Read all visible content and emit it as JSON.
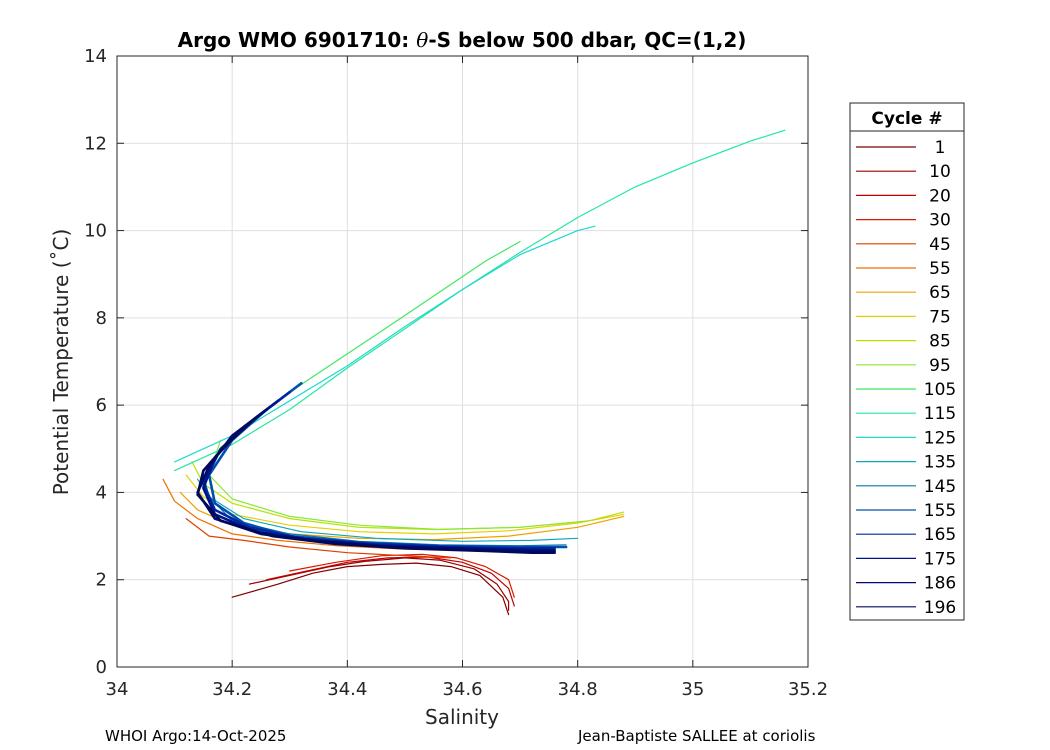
{
  "title": {
    "prefix": "Argo WMO 6901710: ",
    "symbol": "θ",
    "suffix": "-S below 500 dbar,  QC=(1,2)"
  },
  "footer": {
    "left": "WHOI Argo:14-Oct-2025",
    "right": "Jean-Baptiste SALLEE at coriolis"
  },
  "chart_data": {
    "type": "line",
    "xlabel": "Salinity",
    "ylabel": "Potential Temperature (˚C)",
    "xlim": [
      34,
      35.2
    ],
    "ylim": [
      0,
      14
    ],
    "xticks": [
      34,
      34.2,
      34.4,
      34.6,
      34.8,
      35,
      35.2
    ],
    "xtick_labels": [
      "34",
      "34.2",
      "34.4",
      "34.6",
      "34.8",
      "35",
      "35.2"
    ],
    "yticks": [
      0,
      2,
      4,
      6,
      8,
      10,
      12,
      14
    ],
    "ytick_labels": [
      "0",
      "2",
      "4",
      "6",
      "8",
      "10",
      "12",
      "14"
    ],
    "grid": true,
    "legend": {
      "title": "Cycle #",
      "placement": "outside-right",
      "entries": [
        "1",
        "10",
        "20",
        "30",
        "45",
        "55",
        "65",
        "75",
        "85",
        "95",
        "105",
        "115",
        "125",
        "135",
        "145",
        "155",
        "165",
        "175",
        "186",
        "196"
      ],
      "colors": [
        "#7f0000",
        "#990000",
        "#c00000",
        "#d81a00",
        "#e04000",
        "#ee7000",
        "#f0a000",
        "#e6d000",
        "#b8e000",
        "#88e830",
        "#40e860",
        "#20e8a0",
        "#20d8d0",
        "#10a8b8",
        "#0878a8",
        "#0050b0",
        "#0028a0",
        "#00148a",
        "#000a70",
        "#000a5a"
      ]
    },
    "series": [
      {
        "color": "#7f0000",
        "x": [
          34.2,
          34.28,
          34.34,
          34.4,
          34.46,
          34.52,
          34.58,
          34.63,
          34.67,
          34.68
        ],
        "y": [
          1.6,
          1.9,
          2.15,
          2.3,
          2.35,
          2.38,
          2.3,
          2.1,
          1.6,
          1.2
        ]
      },
      {
        "color": "#990000",
        "x": [
          34.23,
          34.3,
          34.37,
          34.43,
          34.5,
          34.56,
          34.62,
          34.66,
          34.68,
          34.68
        ],
        "y": [
          1.9,
          2.1,
          2.3,
          2.42,
          2.5,
          2.45,
          2.25,
          1.9,
          1.5,
          1.3
        ]
      },
      {
        "color": "#c00000",
        "x": [
          34.26,
          34.33,
          34.4,
          34.47,
          34.54,
          34.6,
          34.65,
          34.68,
          34.69
        ],
        "y": [
          2.0,
          2.2,
          2.4,
          2.5,
          2.52,
          2.4,
          2.15,
          1.8,
          1.4
        ]
      },
      {
        "color": "#d81a00",
        "x": [
          34.3,
          34.38,
          34.46,
          34.53,
          34.59,
          34.64,
          34.68,
          34.69
        ],
        "y": [
          2.2,
          2.4,
          2.55,
          2.58,
          2.5,
          2.3,
          2.0,
          1.6
        ]
      },
      {
        "color": "#e04000",
        "x": [
          34.12,
          34.16,
          34.22,
          34.3,
          34.4,
          34.5,
          34.58
        ],
        "y": [
          3.4,
          3.0,
          2.9,
          2.75,
          2.62,
          2.55,
          2.5
        ]
      },
      {
        "color": "#ee7000",
        "x": [
          34.08,
          34.1,
          34.14,
          34.2,
          34.28,
          34.38,
          34.5,
          34.62,
          34.72
        ],
        "y": [
          4.3,
          3.8,
          3.4,
          3.05,
          2.9,
          2.78,
          2.7,
          2.68,
          2.7
        ]
      },
      {
        "color": "#f0a000",
        "x": [
          34.11,
          34.14,
          34.2,
          34.3,
          34.42,
          34.55,
          34.68,
          34.8,
          34.88
        ],
        "y": [
          4.0,
          3.6,
          3.25,
          3.05,
          2.95,
          2.92,
          3.0,
          3.2,
          3.45
        ]
      },
      {
        "color": "#e6d000",
        "x": [
          34.12,
          34.15,
          34.2,
          34.3,
          34.42,
          34.55,
          34.68,
          34.8,
          34.88
        ],
        "y": [
          4.4,
          3.9,
          3.5,
          3.25,
          3.1,
          3.05,
          3.12,
          3.3,
          3.5
        ]
      },
      {
        "color": "#b8e000",
        "x": [
          34.13,
          34.15,
          34.2,
          34.3,
          34.42,
          34.55,
          34.7,
          34.82,
          34.88
        ],
        "y": [
          4.7,
          4.2,
          3.75,
          3.4,
          3.2,
          3.15,
          3.2,
          3.35,
          3.55
        ]
      },
      {
        "color": "#88e830",
        "x": [
          34.18,
          34.16,
          34.2,
          34.3,
          34.42,
          34.56,
          34.7,
          34.82
        ],
        "y": [
          5.2,
          4.4,
          3.85,
          3.45,
          3.25,
          3.15,
          3.2,
          3.35
        ]
      },
      {
        "color": "#40e860",
        "x": [
          34.25,
          34.3,
          34.38,
          34.46,
          34.55,
          34.64,
          34.7
        ],
        "y": [
          5.8,
          6.3,
          7.0,
          7.7,
          8.5,
          9.3,
          9.75
        ]
      },
      {
        "color": "#20e8a0",
        "x": [
          34.1,
          34.2,
          34.3,
          34.4,
          34.5,
          34.6,
          34.7,
          34.8,
          34.9,
          35.0,
          35.1,
          35.16
        ],
        "y": [
          4.5,
          5.1,
          5.9,
          6.85,
          7.75,
          8.65,
          9.5,
          10.3,
          11.0,
          11.55,
          12.05,
          12.3
        ]
      },
      {
        "color": "#20d8d0",
        "x": [
          34.1,
          34.2,
          34.3,
          34.4,
          34.5,
          34.6,
          34.7,
          34.8,
          34.83
        ],
        "y": [
          4.7,
          5.3,
          6.1,
          6.9,
          7.8,
          8.65,
          9.45,
          10.0,
          10.1
        ]
      },
      {
        "color": "#10a8b8",
        "x": [
          34.14,
          34.16,
          34.22,
          34.32,
          34.45,
          34.6,
          34.72,
          34.8
        ],
        "y": [
          4.3,
          3.9,
          3.4,
          3.1,
          2.95,
          2.88,
          2.9,
          2.95
        ]
      },
      {
        "color": "#0878a8",
        "x": [
          34.15,
          34.16,
          34.2,
          34.3,
          34.42,
          34.56,
          34.7,
          34.78
        ],
        "y": [
          4.4,
          3.9,
          3.35,
          3.05,
          2.88,
          2.8,
          2.78,
          2.8
        ]
      },
      {
        "color": "#0050b0",
        "x": [
          34.32,
          34.26,
          34.2,
          34.16,
          34.17,
          34.22,
          34.3,
          34.42,
          34.55,
          34.68,
          34.78
        ],
        "y": [
          6.5,
          5.9,
          5.2,
          4.4,
          3.75,
          3.3,
          3.0,
          2.85,
          2.78,
          2.75,
          2.75
        ]
      },
      {
        "color": "#0028a0",
        "x": [
          34.3,
          34.24,
          34.18,
          34.15,
          34.17,
          34.23,
          34.32,
          34.44,
          34.58,
          34.7,
          34.76
        ],
        "y": [
          6.3,
          5.7,
          5.0,
          4.2,
          3.6,
          3.2,
          2.95,
          2.82,
          2.75,
          2.72,
          2.72
        ]
      },
      {
        "color": "#00148a",
        "x": [
          34.28,
          34.22,
          34.17,
          34.15,
          34.17,
          34.24,
          34.34,
          34.46,
          34.6,
          34.72,
          34.76
        ],
        "y": [
          6.1,
          5.5,
          4.8,
          4.1,
          3.5,
          3.1,
          2.9,
          2.78,
          2.72,
          2.68,
          2.68
        ]
      },
      {
        "color": "#000a70",
        "x": [
          34.26,
          34.2,
          34.16,
          34.14,
          34.17,
          34.25,
          34.36,
          34.48,
          34.62,
          34.72,
          34.76
        ],
        "y": [
          5.9,
          5.3,
          4.6,
          4.0,
          3.4,
          3.05,
          2.87,
          2.75,
          2.7,
          2.65,
          2.65
        ]
      },
      {
        "color": "#000a5a",
        "x": [
          34.24,
          34.19,
          34.15,
          34.14,
          34.18,
          34.27,
          34.38,
          34.5,
          34.64,
          34.72,
          34.76
        ],
        "y": [
          5.7,
          5.1,
          4.5,
          3.95,
          3.35,
          3.0,
          2.82,
          2.72,
          2.66,
          2.62,
          2.62
        ]
      }
    ]
  }
}
